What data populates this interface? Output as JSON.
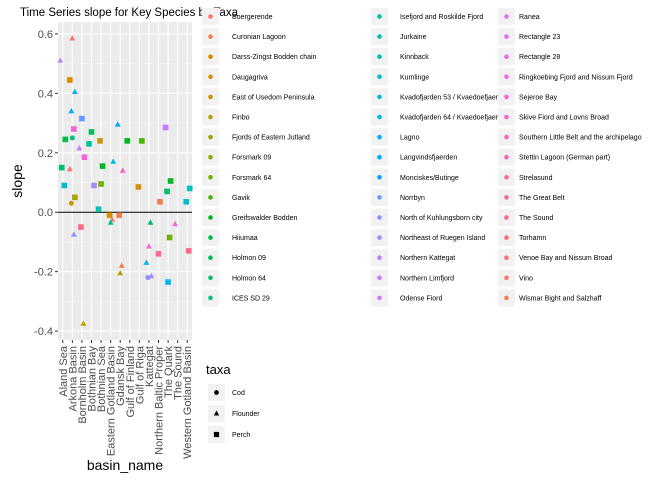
{
  "chart_data": {
    "type": "scatter",
    "title": "Time Series slope for Key Species by Taxa",
    "xlabel": "basin_name",
    "ylabel": "slope",
    "x": [
      "Aland Sea",
      "Arkona Basin",
      "Bornholm Basin",
      "Bothnian Bay",
      "Bothnian Sea",
      "Eastern Gotland Basin",
      "Gdansk Bay",
      "Gulf of Finland",
      "Gulf of Riga",
      "Kattegat",
      "Northern Baltic Proper",
      "The Quark",
      "The Sound",
      "Western Gotland Basin"
    ],
    "x_tick_labels": [
      "Aland Sea",
      "Arkona Basin",
      "Bornholm Basin",
      "Bothnian Bay",
      "Bothnian Sea",
      "Eastern Gotland Basin",
      "Gdansk Bay",
      "Gulf of Finland",
      "Gulf of Riga",
      "Kattegat",
      "Northern Baltic Proper",
      "The Quark",
      "The Sound",
      "Western Gotland Basin"
    ],
    "ylim": [
      -0.43,
      0.64
    ],
    "y_ticks": [
      -0.4,
      -0.2,
      0.0,
      0.2,
      0.4,
      0.6
    ],
    "y_tick_labels": [
      "-0.4",
      "-0.2",
      "0.0",
      "0.2",
      "0.4",
      "0.6"
    ],
    "grid": true,
    "reference_line_y": 0,
    "legend_color_title": "",
    "legend_shape_title": "taxa",
    "legend_placement": "right",
    "site_legend": [
      {
        "name": "Boergerende",
        "color": "#F8766D"
      },
      {
        "name": "Curonian Lagoon",
        "color": "#F07F50"
      },
      {
        "name": "Darss-Zingst Bodden chain",
        "color": "#E48800"
      },
      {
        "name": "Daugagriva",
        "color": "#D79000"
      },
      {
        "name": "East of Usedom Peninsula",
        "color": "#C89800"
      },
      {
        "name": "Finbo",
        "color": "#B79F00"
      },
      {
        "name": "Fjords of Eastern Jutland",
        "color": "#A3A500"
      },
      {
        "name": "Forsmark 09",
        "color": "#8DAB00"
      },
      {
        "name": "Forsmark 64",
        "color": "#72B000"
      },
      {
        "name": "Gavik",
        "color": "#4AB400"
      },
      {
        "name": "Greifswalder Bodden",
        "color": "#00B81F"
      },
      {
        "name": "Hiiumaa",
        "color": "#00BB44"
      },
      {
        "name": "Holmon 09",
        "color": "#00BD5D"
      },
      {
        "name": "Holmon 64",
        "color": "#00BF73"
      },
      {
        "name": "ICES SD 29",
        "color": "#00C087"
      },
      {
        "name": "Isefjord and Roskilde Fjord",
        "color": "#00C19A"
      },
      {
        "name": "Jurkaine",
        "color": "#00C1AC"
      },
      {
        "name": "Kinnback",
        "color": "#00C0BD"
      },
      {
        "name": "Kumlinge",
        "color": "#00BECD"
      },
      {
        "name": "Kvadofjarden 53 / Kvaedoefjaerden",
        "color": "#00BBDC"
      },
      {
        "name": "Kvadofjarden 64 / Kvaedoefjaerden",
        "color": "#00B7E9"
      },
      {
        "name": "Lagno",
        "color": "#00B1F5"
      },
      {
        "name": "Langvindsfjaerden",
        "color": "#00AAFE"
      },
      {
        "name": "Monciskes/Butinge",
        "color": "#00A2FF"
      },
      {
        "name": "Norrbyn",
        "color": "#619CFF"
      },
      {
        "name": "North of Kuhlungsborn city",
        "color": "#8B93FF"
      },
      {
        "name": "Northeast of Ruegen Island",
        "color": "#A58AFF"
      },
      {
        "name": "Northern Kattegat",
        "color": "#B983FF"
      },
      {
        "name": "Northern Limfjord",
        "color": "#C77CFF"
      },
      {
        "name": "Odense Fiord",
        "color": "#D376FF"
      },
      {
        "name": "Ranea",
        "color": "#DC71FA"
      },
      {
        "name": "Rectangle 23",
        "color": "#E56DF2"
      },
      {
        "name": "Rectangle 28",
        "color": "#EC69EA"
      },
      {
        "name": "Ringkoebing Fjord and Nissum Fjord",
        "color": "#F166E2"
      },
      {
        "name": "Sejeroe Bay",
        "color": "#F564D7"
      },
      {
        "name": "Skive Fiord and Lovns Broad",
        "color": "#F862CB"
      },
      {
        "name": "Southern Little Belt and the archipelago",
        "color": "#FA62BE"
      },
      {
        "name": "Stettin Lagoon (German part)",
        "color": "#FC63B1"
      },
      {
        "name": "Strelasund",
        "color": "#FD65A3"
      },
      {
        "name": "The Great Belt",
        "color": "#FD6795"
      },
      {
        "name": "The Sound",
        "color": "#FC6A87"
      },
      {
        "name": "Torhamn",
        "color": "#FB6D7A"
      },
      {
        "name": "Venoe Bay and Nissum Broad",
        "color": "#F9706E"
      },
      {
        "name": "Vino",
        "color": "#F77562"
      },
      {
        "name": "Wismar Bight and Salzhaff",
        "color": "#F57A58"
      }
    ],
    "taxa_legend": [
      "Cod",
      "Flounder",
      "Perch"
    ],
    "points": [
      {
        "x": "Aland Sea",
        "y": 0.51,
        "taxa": "Flounder",
        "color": "#C77CFF"
      },
      {
        "x": "Aland Sea",
        "y": 0.245,
        "taxa": "Perch",
        "color": "#00BB44"
      },
      {
        "x": "Aland Sea",
        "y": 0.15,
        "taxa": "Perch",
        "color": "#00BF73"
      },
      {
        "x": "Aland Sea",
        "y": 0.09,
        "taxa": "Perch",
        "color": "#00BECD"
      },
      {
        "x": "Arkona Basin",
        "y": 0.585,
        "taxa": "Flounder",
        "color": "#F8766D"
      },
      {
        "x": "Arkona Basin",
        "y": 0.445,
        "taxa": "Perch",
        "color": "#E48800"
      },
      {
        "x": "Arkona Basin",
        "y": 0.405,
        "taxa": "Flounder",
        "color": "#00B1F5"
      },
      {
        "x": "Arkona Basin",
        "y": 0.34,
        "taxa": "Flounder",
        "color": "#00AAFE"
      },
      {
        "x": "Arkona Basin",
        "y": 0.28,
        "taxa": "Perch",
        "color": "#F564D7"
      },
      {
        "x": "Arkona Basin",
        "y": 0.25,
        "taxa": "Cod",
        "color": "#00C087"
      },
      {
        "x": "Arkona Basin",
        "y": 0.145,
        "taxa": "Flounder",
        "color": "#F8766D"
      },
      {
        "x": "Arkona Basin",
        "y": 0.05,
        "taxa": "Perch",
        "color": "#A3A500"
      },
      {
        "x": "Arkona Basin",
        "y": 0.03,
        "taxa": "Cod",
        "color": "#C89800"
      },
      {
        "x": "Arkona Basin",
        "y": -0.075,
        "taxa": "Flounder",
        "color": "#8B93FF"
      },
      {
        "x": "Bornholm Basin",
        "y": 0.315,
        "taxa": "Perch",
        "color": "#619CFF"
      },
      {
        "x": "Bornholm Basin",
        "y": 0.215,
        "taxa": "Flounder",
        "color": "#C77CFF"
      },
      {
        "x": "Bornholm Basin",
        "y": 0.185,
        "taxa": "Perch",
        "color": "#F166E2"
      },
      {
        "x": "Bornholm Basin",
        "y": -0.05,
        "taxa": "Perch",
        "color": "#FC6A87"
      },
      {
        "x": "Bornholm Basin",
        "y": -0.375,
        "taxa": "Flounder",
        "color": "#B79F00"
      },
      {
        "x": "Bothnian Bay",
        "y": 0.27,
        "taxa": "Perch",
        "color": "#00BD5D"
      },
      {
        "x": "Bothnian Bay",
        "y": 0.23,
        "taxa": "Perch",
        "color": "#00C19A"
      },
      {
        "x": "Bothnian Bay",
        "y": 0.09,
        "taxa": "Perch",
        "color": "#A58AFF"
      },
      {
        "x": "Bothnian Sea",
        "y": 0.24,
        "taxa": "Perch",
        "color": "#C89800"
      },
      {
        "x": "Bothnian Sea",
        "y": 0.155,
        "taxa": "Perch",
        "color": "#00B81F"
      },
      {
        "x": "Bothnian Sea",
        "y": 0.095,
        "taxa": "Perch",
        "color": "#72B000"
      },
      {
        "x": "Bothnian Sea",
        "y": 0.01,
        "taxa": "Perch",
        "color": "#00C1AC"
      },
      {
        "x": "Eastern Gotland Basin",
        "y": 0.17,
        "taxa": "Flounder",
        "color": "#00B7E9"
      },
      {
        "x": "Eastern Gotland Basin",
        "y": -0.01,
        "taxa": "Perch",
        "color": "#D79000"
      },
      {
        "x": "Eastern Gotland Basin",
        "y": -0.025,
        "taxa": "Flounder",
        "color": "#F8766D"
      },
      {
        "x": "Eastern Gotland Basin",
        "y": -0.035,
        "taxa": "Flounder",
        "color": "#00C087"
      },
      {
        "x": "Gdansk Bay",
        "y": 0.295,
        "taxa": "Flounder",
        "color": "#00A2FF"
      },
      {
        "x": "Gdansk Bay",
        "y": 0.14,
        "taxa": "Flounder",
        "color": "#F862CB"
      },
      {
        "x": "Gdansk Bay",
        "y": -0.01,
        "taxa": "Perch",
        "color": "#F07F50"
      },
      {
        "x": "Gdansk Bay",
        "y": -0.18,
        "taxa": "Flounder",
        "color": "#F07F50"
      },
      {
        "x": "Gdansk Bay",
        "y": -0.205,
        "taxa": "Flounder",
        "color": "#B79F00"
      },
      {
        "x": "Gulf of Finland",
        "y": 0.24,
        "taxa": "Perch",
        "color": "#00B81F"
      },
      {
        "x": "Gulf of Riga",
        "y": 0.24,
        "taxa": "Perch",
        "color": "#4AB400"
      },
      {
        "x": "Gulf of Riga",
        "y": 0.085,
        "taxa": "Perch",
        "color": "#D79000"
      },
      {
        "x": "Kattegat",
        "y": -0.035,
        "taxa": "Flounder",
        "color": "#00BD5D"
      },
      {
        "x": "Kattegat",
        "y": -0.115,
        "taxa": "Flounder",
        "color": "#F166E2"
      },
      {
        "x": "Kattegat",
        "y": -0.17,
        "taxa": "Flounder",
        "color": "#00B1F5"
      },
      {
        "x": "Kattegat",
        "y": -0.215,
        "taxa": "Flounder",
        "color": "#A58AFF"
      },
      {
        "x": "Kattegat",
        "y": -0.22,
        "taxa": "Cod",
        "color": "#8B93FF"
      },
      {
        "x": "Northern Baltic Proper",
        "y": 0.035,
        "taxa": "Perch",
        "color": "#F07F50"
      },
      {
        "x": "Northern Baltic Proper",
        "y": -0.14,
        "taxa": "Perch",
        "color": "#FD6795"
      },
      {
        "x": "The Quark",
        "y": 0.285,
        "taxa": "Perch",
        "color": "#C77CFF"
      },
      {
        "x": "The Quark",
        "y": 0.105,
        "taxa": "Perch",
        "color": "#00B81F"
      },
      {
        "x": "The Quark",
        "y": 0.07,
        "taxa": "Perch",
        "color": "#00BF73"
      },
      {
        "x": "The Quark",
        "y": -0.085,
        "taxa": "Perch",
        "color": "#72B000"
      },
      {
        "x": "The Quark",
        "y": -0.235,
        "taxa": "Perch",
        "color": "#00B7E9"
      },
      {
        "x": "The Sound",
        "y": -0.04,
        "taxa": "Flounder",
        "color": "#F564D7"
      },
      {
        "x": "Western Gotland Basin",
        "y": 0.08,
        "taxa": "Perch",
        "color": "#00C0BD"
      },
      {
        "x": "Western Gotland Basin",
        "y": 0.035,
        "taxa": "Perch",
        "color": "#00BECD"
      },
      {
        "x": "Western Gotland Basin",
        "y": -0.13,
        "taxa": "Perch",
        "color": "#FC6A87"
      }
    ]
  }
}
